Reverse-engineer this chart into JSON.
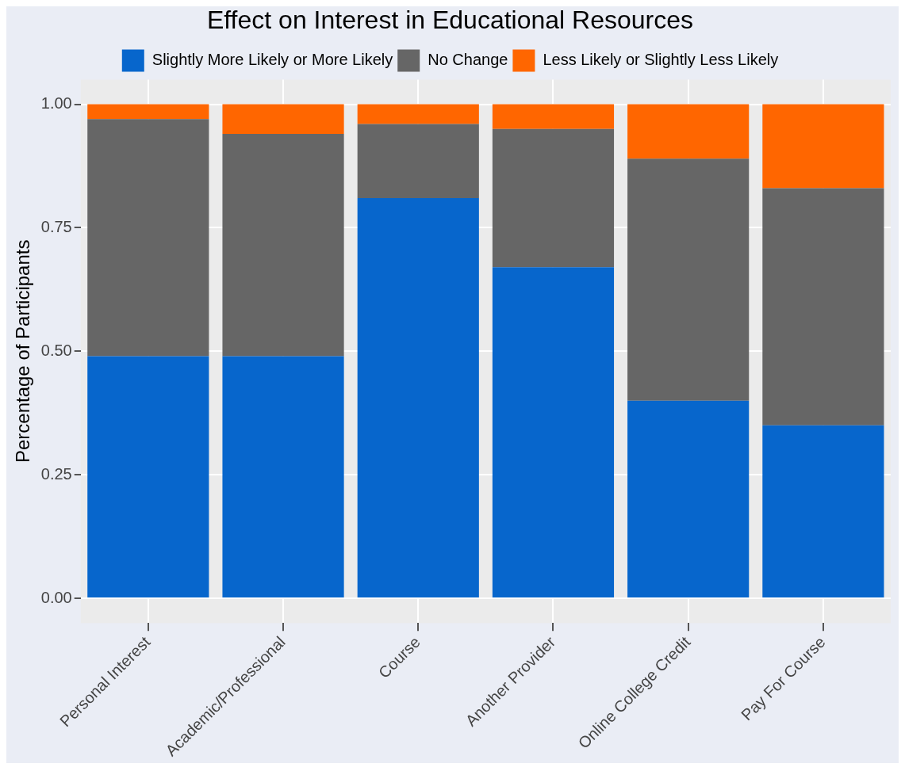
{
  "chart_data": {
    "type": "bar",
    "title": "Effect on Interest in Educational Resources",
    "ylabel": "Percentage of Participants",
    "categories": [
      "Personal Interest",
      "Academic/Professional",
      "Course",
      "Another Provider",
      "Online College Credit",
      "Pay For Course"
    ],
    "stacked": true,
    "series": [
      {
        "name": "Slightly More Likely or More Likely",
        "color": "#0766cc",
        "values": [
          0.49,
          0.49,
          0.81,
          0.67,
          0.4,
          0.35
        ]
      },
      {
        "name": "No Change",
        "color": "#666666",
        "values": [
          0.48,
          0.45,
          0.15,
          0.28,
          0.49,
          0.48
        ]
      },
      {
        "name": "Less Likely or Slightly Less Likely",
        "color": "#ff6600",
        "values": [
          0.03,
          0.06,
          0.04,
          0.05,
          0.11,
          0.17
        ]
      }
    ],
    "ylim": [
      -0.05,
      1.05
    ],
    "yticks": [
      {
        "value": 0,
        "label": "0.00"
      },
      {
        "value": 0.25,
        "label": "0.25"
      },
      {
        "value": 0.5,
        "label": "0.50"
      },
      {
        "value": 0.75,
        "label": "0.75"
      },
      {
        "value": 1,
        "label": "1.00"
      }
    ],
    "grid": true,
    "legend": "top"
  }
}
